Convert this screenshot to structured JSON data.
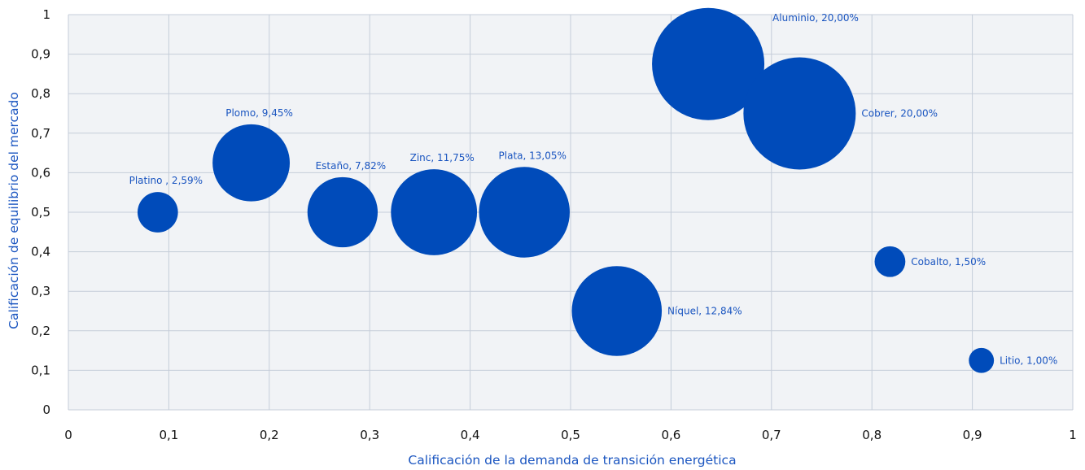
{
  "chart_data": {
    "type": "bubble",
    "xlabel": "Calificación de la demanda de transición energética",
    "ylabel": "Calificación de equilibrio del mercado",
    "xlim": [
      0,
      1
    ],
    "ylim": [
      0,
      1
    ],
    "x_ticks": [
      {
        "value": 0,
        "label": "0"
      },
      {
        "value": 0.1,
        "label": "0,1"
      },
      {
        "value": 0.2,
        "label": "0,2"
      },
      {
        "value": 0.3,
        "label": "0,3"
      },
      {
        "value": 0.4,
        "label": "0,4"
      },
      {
        "value": 0.5,
        "label": "0,5"
      },
      {
        "value": 0.6,
        "label": "0,6"
      },
      {
        "value": 0.7,
        "label": "0,7"
      },
      {
        "value": 0.8,
        "label": "0,8"
      },
      {
        "value": 0.9,
        "label": "0,9"
      },
      {
        "value": 1,
        "label": "1"
      }
    ],
    "y_ticks": [
      {
        "value": 0,
        "label": "0"
      },
      {
        "value": 0.1,
        "label": "0,1"
      },
      {
        "value": 0.2,
        "label": "0,2"
      },
      {
        "value": 0.3,
        "label": "0,3"
      },
      {
        "value": 0.4,
        "label": "0,4"
      },
      {
        "value": 0.5,
        "label": "0,5"
      },
      {
        "value": 0.6,
        "label": "0,6"
      },
      {
        "value": 0.7,
        "label": "0,7"
      },
      {
        "value": 0.8,
        "label": "0,8"
      },
      {
        "value": 0.9,
        "label": "0,9"
      },
      {
        "value": 1,
        "label": "1"
      }
    ],
    "grid": true,
    "bubble_color": "#004bba",
    "label_color": "#1a55c0",
    "axis_title_color": "#1a55c0",
    "points": [
      {
        "name": "Platino",
        "x": 0.089,
        "y": 0.5,
        "size": 2.59,
        "label": "Platino , 2,59%",
        "label_pos": "above"
      },
      {
        "name": "Plomo",
        "x": 0.182,
        "y": 0.625,
        "size": 9.45,
        "label": "Plomo, 9,45%",
        "label_pos": "above"
      },
      {
        "name": "Estaño",
        "x": 0.273,
        "y": 0.5,
        "size": 7.82,
        "label": "Estaño, 7,82%",
        "label_pos": "above"
      },
      {
        "name": "Zinc",
        "x": 0.364,
        "y": 0.5,
        "size": 11.75,
        "label": "Zinc, 11,75%",
        "label_pos": "above"
      },
      {
        "name": "Plata",
        "x": 0.454,
        "y": 0.5,
        "size": 13.05,
        "label": "Plata, 13,05%",
        "label_pos": "above"
      },
      {
        "name": "Níquel",
        "x": 0.546,
        "y": 0.25,
        "size": 12.84,
        "label": "Níquel, 12,84%",
        "label_pos": "right"
      },
      {
        "name": "Aluminio",
        "x": 0.637,
        "y": 0.875,
        "size": 20.0,
        "label": "Aluminio, 20,00%",
        "label_pos": "upper-right"
      },
      {
        "name": "Cobrer",
        "x": 0.728,
        "y": 0.75,
        "size": 20.0,
        "label": "Cobrer, 20,00%",
        "label_pos": "right"
      },
      {
        "name": "Cobalto",
        "x": 0.818,
        "y": 0.375,
        "size": 1.5,
        "label": "Cobalto, 1,50%",
        "label_pos": "right"
      },
      {
        "name": "Litio",
        "x": 0.909,
        "y": 0.125,
        "size": 1.0,
        "label": "Litio, 1,00%",
        "label_pos": "right"
      }
    ]
  }
}
